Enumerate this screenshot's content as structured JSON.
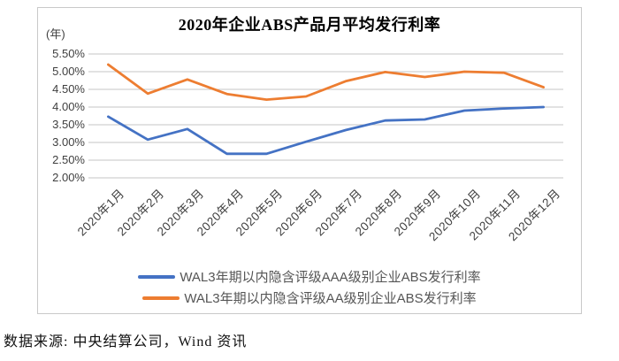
{
  "chart_data": {
    "type": "line",
    "title": "2020年企业ABS产品月平均发行利率",
    "y_unit_label": "(年)",
    "categories": [
      "2020年1月",
      "2020年2月",
      "2020年3月",
      "2020年4月",
      "2020年5月",
      "2020年6月",
      "2020年7月",
      "2020年8月",
      "2020年9月",
      "2020年10月",
      "2020年11月",
      "2020年12月"
    ],
    "y_ticks": [
      "5.50%",
      "5.00%",
      "4.50%",
      "4.00%",
      "3.50%",
      "3.00%",
      "2.50%",
      "2.00%"
    ],
    "ylim": [
      2.0,
      5.5
    ],
    "grid": true,
    "legend_position": "bottom",
    "series": [
      {
        "key": "aaa",
        "name": "WAL3年期以内隐含评级AAA级别企业ABS发行利率",
        "color": "#4472C4",
        "values": [
          3.73,
          3.08,
          3.38,
          2.68,
          2.68,
          3.02,
          3.35,
          3.62,
          3.65,
          3.9,
          3.96,
          4.0
        ]
      },
      {
        "key": "aa",
        "name": "WAL3年期以内隐含评级AA级别企业ABS发行利率",
        "color": "#ED7D31",
        "values": [
          5.2,
          4.38,
          4.78,
          4.37,
          4.21,
          4.3,
          4.73,
          4.99,
          4.85,
          5.0,
          4.97,
          4.56
        ]
      }
    ],
    "colors": {
      "gridline": "#c6c6c6",
      "axis_text": "#3f3f3f"
    }
  },
  "caption": "数据来源: 中央结算公司，Wind 资讯"
}
